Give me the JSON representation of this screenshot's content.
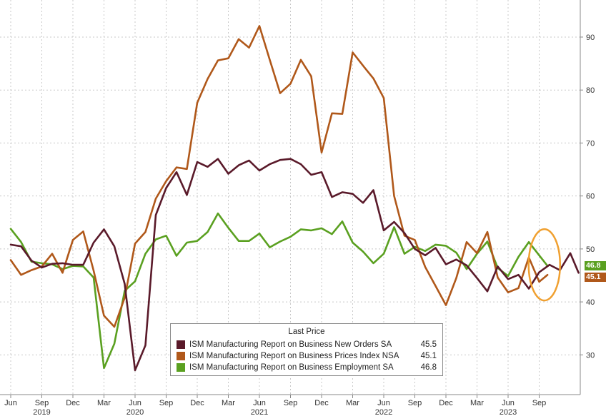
{
  "chart_data": {
    "type": "line",
    "x_ticks": [
      {
        "t": 0.0,
        "label": "Jun"
      },
      {
        "t": 3.0,
        "label": "Sep"
      },
      {
        "t": 6.0,
        "label": "Dec"
      },
      {
        "t": 9.0,
        "label": "Mar"
      },
      {
        "t": 12.0,
        "label": "Jun"
      },
      {
        "t": 15.0,
        "label": "Sep"
      },
      {
        "t": 18.0,
        "label": "Dec"
      },
      {
        "t": 21.0,
        "label": "Mar"
      },
      {
        "t": 24.0,
        "label": "Jun"
      },
      {
        "t": 27.0,
        "label": "Sep"
      },
      {
        "t": 30.0,
        "label": "Dec"
      },
      {
        "t": 33.0,
        "label": "Mar"
      },
      {
        "t": 36.0,
        "label": "Jun"
      },
      {
        "t": 39.0,
        "label": "Sep"
      },
      {
        "t": 42.0,
        "label": "Dec"
      },
      {
        "t": 45.0,
        "label": "Mar"
      },
      {
        "t": 48.0,
        "label": "Jun"
      },
      {
        "t": 51.0,
        "label": "Sep"
      }
    ],
    "year_labels": [
      {
        "t": 3.0,
        "label": "2019"
      },
      {
        "t": 12.0,
        "label": "2020"
      },
      {
        "t": 24.0,
        "label": "2021"
      },
      {
        "t": 36.0,
        "label": "2022"
      },
      {
        "t": 48.0,
        "label": "2023"
      }
    ],
    "y_ticks": [
      30,
      40,
      50,
      60,
      70,
      80,
      90
    ],
    "ylim": [
      22.5,
      97
    ],
    "xlim": [
      0,
      54
    ],
    "grid": true,
    "legend": {
      "title": "Last Price",
      "placement": "bottom-center"
    },
    "series": [
      {
        "name": "ISM Manufacturing Report on Business New Orders SA",
        "last": "45.5",
        "color": "#5a1a2a",
        "values": [
          50.8,
          50.5,
          47.8,
          46.5,
          47.2,
          47.3,
          47.0,
          47.0,
          51.2,
          53.7,
          50.5,
          43.4,
          27.1,
          31.8,
          56.4,
          61.5,
          64.5,
          60.2,
          66.4,
          65.5,
          67.0,
          64.2,
          65.8,
          66.7,
          64.8,
          66.0,
          66.8,
          67.0,
          66.0,
          64.0,
          64.5,
          59.8,
          60.7,
          60.4,
          58.7,
          61.1,
          53.5,
          55.1,
          53.0,
          50.0,
          48.8,
          50.2,
          47.1,
          48.0,
          46.9,
          44.5,
          42.0,
          46.7,
          44.3,
          45.1,
          42.5,
          45.6,
          47.0,
          46.0,
          49.2,
          45.5
        ],
        "t": [
          0,
          1,
          2,
          3,
          4,
          5,
          6,
          7,
          8,
          9,
          10,
          11,
          12,
          13,
          14,
          15,
          16,
          17,
          18,
          19,
          20,
          21,
          22,
          23,
          24,
          25,
          26,
          27,
          28,
          29,
          30,
          31,
          32,
          33,
          34,
          35,
          36,
          37,
          38,
          39,
          40,
          41,
          42,
          43,
          44,
          45,
          46,
          47,
          48,
          49,
          50,
          51,
          52,
          53,
          54,
          54.8
        ]
      },
      {
        "name": "ISM Manufacturing Report on Business Prices Index NSA",
        "last": "45.1",
        "color": "#b0581a",
        "values": [
          47.9,
          45.1,
          46.0,
          46.7,
          49.1,
          45.5,
          51.7,
          53.3,
          45.9,
          37.4,
          35.3,
          40.8,
          51.0,
          53.2,
          59.5,
          62.8,
          65.4,
          65.1,
          77.6,
          82.1,
          85.6,
          86.0,
          89.6,
          88.0,
          92.1,
          85.7,
          79.4,
          81.2,
          85.7,
          82.6,
          68.2,
          75.6,
          75.5,
          87.1,
          84.6,
          82.2,
          78.5,
          60.0,
          52.5,
          51.7,
          46.6,
          43.0,
          39.4,
          44.5,
          51.3,
          49.2,
          53.2,
          44.6,
          41.8,
          42.6,
          48.4,
          43.8,
          45.1
        ],
        "t": [
          0,
          1,
          2,
          3,
          4,
          5,
          6,
          7,
          8,
          9,
          10,
          11,
          12,
          13,
          14,
          15,
          16,
          17,
          18,
          19,
          20,
          21,
          22,
          23,
          24,
          25,
          26,
          27,
          28,
          29,
          30,
          31,
          32,
          33,
          34,
          35,
          36,
          37,
          38,
          39,
          40,
          41,
          42,
          43,
          44,
          45,
          46,
          47,
          48,
          49,
          50,
          51,
          51.8
        ]
      },
      {
        "name": "ISM Manufacturing Report on Business Employment SA",
        "last": "46.8",
        "color": "#5aa020",
        "values": [
          53.8,
          51.3,
          47.6,
          47.3,
          47.1,
          46.2,
          46.8,
          46.7,
          44.6,
          27.5,
          32.1,
          42.1,
          43.9,
          49.1,
          51.8,
          52.5,
          48.7,
          51.2,
          51.5,
          53.2,
          56.7,
          54.0,
          51.5,
          51.5,
          52.9,
          50.3,
          51.4,
          52.3,
          53.7,
          53.5,
          53.9,
          52.8,
          55.2,
          51.2,
          49.5,
          47.3,
          49.1,
          54.1,
          49.1,
          50.4,
          49.6,
          50.8,
          50.6,
          49.3,
          46.2,
          49.1,
          51.4,
          46.4,
          44.9,
          48.5,
          51.3,
          48.8,
          46.8
        ],
        "t": [
          0,
          1,
          2,
          3,
          4,
          5,
          6,
          7,
          8,
          9,
          10,
          11,
          12,
          13,
          14,
          15,
          16,
          17,
          18,
          19,
          20,
          21,
          22,
          23,
          24,
          25,
          26,
          27,
          28,
          29,
          30,
          31,
          32,
          33,
          34,
          35,
          36,
          37,
          38,
          39,
          40,
          41,
          42,
          43,
          44,
          45,
          46,
          47,
          48,
          49,
          50,
          51,
          51.8
        ]
      }
    ],
    "annotations": [
      {
        "type": "ellipse",
        "color": "#f0a030",
        "t_center": 51.5,
        "y_center": 47.0
      }
    ]
  }
}
